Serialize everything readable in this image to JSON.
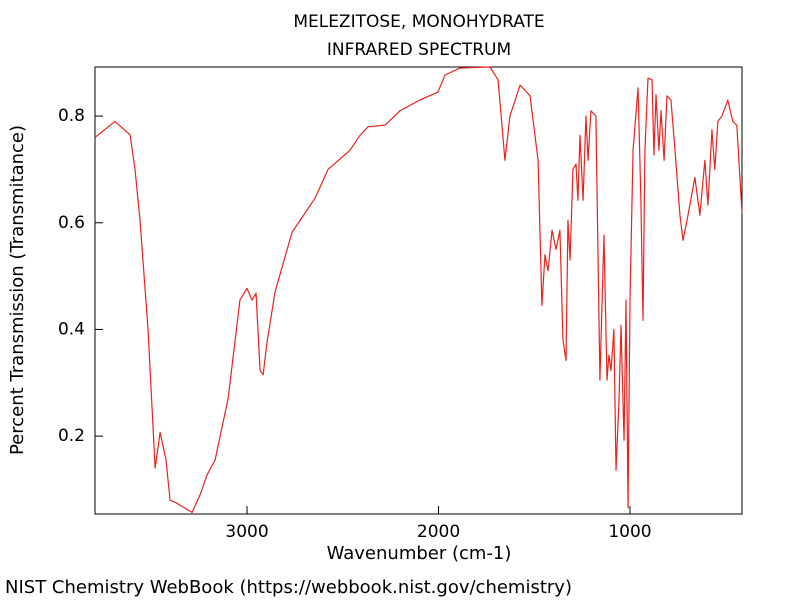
{
  "chart_data": {
    "type": "line",
    "title": "MELEZITOSE, MONOHYDRATE",
    "subtitle": "INFRARED SPECTRUM",
    "x_label": "Wavenumber (cm-1)",
    "y_label": "Percent Transmission (Transmitance)",
    "source": "NIST Chemistry WebBook (https://webbook.nist.gov/chemistry)",
    "color": "#e8231f",
    "xlim": [
      3794,
      415
    ],
    "ylim": [
      0.054,
      0.892
    ],
    "xticks": [
      3000,
      2000,
      1000
    ],
    "yticks": [
      0.2,
      0.4,
      0.6,
      0.8
    ],
    "x": [
      3794,
      3690,
      3611,
      3585,
      3559,
      3517,
      3480,
      3454,
      3423,
      3402,
      3371,
      3324,
      3287,
      3245,
      3209,
      3167,
      3099,
      3037,
      3000,
      2974,
      2953,
      2932,
      2916,
      2896,
      2854,
      2765,
      2645,
      2577,
      2462,
      2410,
      2368,
      2279,
      2201,
      2097,
      2003,
      1966,
      1888,
      1731,
      1689,
      1653,
      1627,
      1574,
      1522,
      1480,
      1460,
      1444,
      1428,
      1407,
      1386,
      1366,
      1350,
      1334,
      1324,
      1313,
      1298,
      1282,
      1272,
      1261,
      1245,
      1230,
      1219,
      1204,
      1178,
      1157,
      1136,
      1120,
      1110,
      1099,
      1084,
      1073,
      1057,
      1047,
      1031,
      1021,
      1010,
      1000,
      984,
      958,
      943,
      932,
      922,
      906,
      885,
      875,
      864,
      849,
      838,
      822,
      807,
      786,
      765,
      739,
      723,
      697,
      661,
      635,
      609,
      593,
      572,
      557,
      541,
      520,
      489,
      463,
      442,
      415
    ],
    "values": [
      0.76,
      0.79,
      0.765,
      0.7,
      0.605,
      0.4,
      0.14,
      0.207,
      0.155,
      0.08,
      0.075,
      0.065,
      0.057,
      0.09,
      0.127,
      0.155,
      0.27,
      0.455,
      0.477,
      0.455,
      0.468,
      0.323,
      0.315,
      0.375,
      0.47,
      0.582,
      0.646,
      0.7,
      0.736,
      0.764,
      0.78,
      0.783,
      0.81,
      0.83,
      0.845,
      0.877,
      0.89,
      0.892,
      0.868,
      0.717,
      0.8,
      0.858,
      0.838,
      0.717,
      0.445,
      0.54,
      0.51,
      0.586,
      0.55,
      0.586,
      0.38,
      0.342,
      0.605,
      0.53,
      0.7,
      0.71,
      0.642,
      0.764,
      0.642,
      0.8,
      0.717,
      0.81,
      0.8,
      0.305,
      0.577,
      0.305,
      0.352,
      0.323,
      0.4,
      0.136,
      0.27,
      0.408,
      0.192,
      0.455,
      0.065,
      0.455,
      0.736,
      0.853,
      0.642,
      0.417,
      0.736,
      0.871,
      0.868,
      0.727,
      0.84,
      0.736,
      0.81,
      0.717,
      0.838,
      0.83,
      0.736,
      0.614,
      0.567,
      0.614,
      0.685,
      0.614,
      0.717,
      0.633,
      0.774,
      0.7,
      0.79,
      0.8,
      0.83,
      0.79,
      0.783,
      0.618
    ]
  }
}
